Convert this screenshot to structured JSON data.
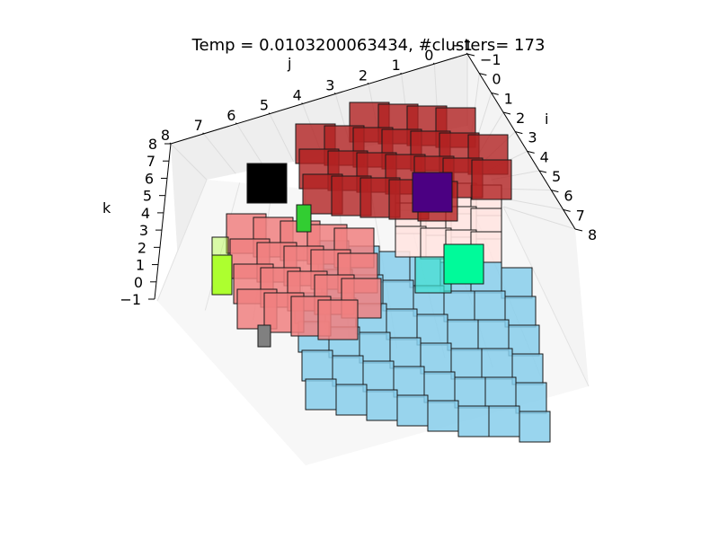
{
  "chart_data": {
    "type": "scatter",
    "subtype": "3d-voxel-clusters",
    "title": "Temp = 0.0103200063434, #clusters= 173",
    "axes": {
      "i": {
        "label": "i",
        "ticks": [
          "−1",
          "0",
          "1",
          "2",
          "3",
          "4",
          "5",
          "6",
          "7",
          "8"
        ],
        "range": [
          -1,
          8
        ]
      },
      "j": {
        "label": "j",
        "ticks": [
          "−1",
          "0",
          "1",
          "2",
          "3",
          "4",
          "5",
          "6",
          "7",
          "8"
        ],
        "range": [
          -1,
          8
        ]
      },
      "k": {
        "label": "k",
        "ticks": [
          "−1",
          "0",
          "1",
          "2",
          "3",
          "4",
          "5",
          "6",
          "7",
          "8"
        ],
        "range": [
          -1,
          8
        ]
      }
    },
    "grid": true,
    "pane_color": "#f2f2f2",
    "clusters": [
      {
        "color": "#87ceeb",
        "region": "lower-right"
      },
      {
        "color": "#f08080",
        "region": "left"
      },
      {
        "color": "#b22222",
        "region": "top"
      },
      {
        "color": "#ffe4e1",
        "region": "right"
      },
      {
        "color": "#4b0082",
        "region": "right"
      },
      {
        "color": "#00fa9a",
        "region": "right"
      },
      {
        "color": "#40e0d0",
        "region": "center"
      },
      {
        "color": "#000000",
        "region": "upper-left"
      },
      {
        "color": "#adff2f",
        "region": "left"
      },
      {
        "color": "#32cd32",
        "region": "upper-left"
      },
      {
        "color": "#808080",
        "region": "lower-left"
      }
    ]
  }
}
